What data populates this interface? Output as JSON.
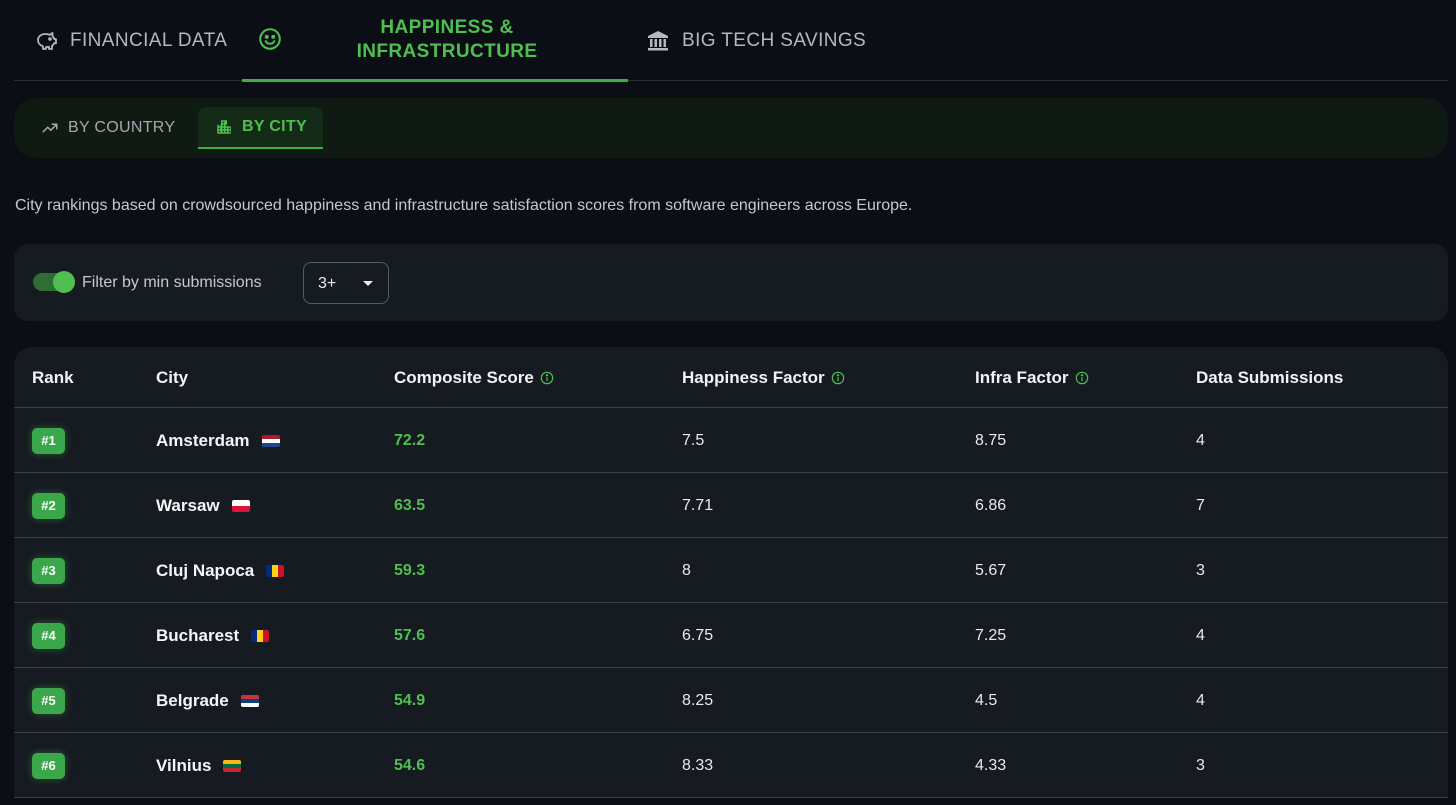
{
  "tabs": [
    {
      "label": "FINANCIAL DATA",
      "icon": "piggy-bank-icon"
    },
    {
      "label_line1": "HAPPINESS &",
      "label_line2": "INFRASTRUCTURE",
      "icon": "smiley-icon",
      "active": true
    },
    {
      "label": "BIG TECH SAVINGS",
      "icon": "bank-building-icon"
    }
  ],
  "subtabs": [
    {
      "label": "BY COUNTRY",
      "icon": "trending-up-icon"
    },
    {
      "label": "BY CITY",
      "icon": "city-icon",
      "active": true
    }
  ],
  "description": "City rankings based on crowdsourced happiness and infrastructure satisfaction scores from software engineers across Europe.",
  "filter": {
    "label": "Filter by min submissions",
    "enabled": true,
    "selected": "3+"
  },
  "table": {
    "headers": {
      "rank": "Rank",
      "city": "City",
      "composite": "Composite Score",
      "happiness": "Happiness Factor",
      "infra": "Infra Factor",
      "submissions": "Data Submissions"
    },
    "rows": [
      {
        "rank": "#1",
        "city": "Amsterdam",
        "flag": "netherlands-flag",
        "composite": "72.2",
        "happiness": "7.5",
        "infra": "8.75",
        "submissions": "4"
      },
      {
        "rank": "#2",
        "city": "Warsaw",
        "flag": "poland-flag",
        "composite": "63.5",
        "happiness": "7.71",
        "infra": "6.86",
        "submissions": "7"
      },
      {
        "rank": "#3",
        "city": "Cluj Napoca",
        "flag": "romania-flag",
        "composite": "59.3",
        "happiness": "8",
        "infra": "5.67",
        "submissions": "3"
      },
      {
        "rank": "#4",
        "city": "Bucharest",
        "flag": "romania-flag",
        "composite": "57.6",
        "happiness": "6.75",
        "infra": "7.25",
        "submissions": "4"
      },
      {
        "rank": "#5",
        "city": "Belgrade",
        "flag": "serbia-flag",
        "composite": "54.9",
        "happiness": "8.25",
        "infra": "4.5",
        "submissions": "4"
      },
      {
        "rank": "#6",
        "city": "Vilnius",
        "flag": "lithuania-flag",
        "composite": "54.6",
        "happiness": "8.33",
        "infra": "4.33",
        "submissions": "3"
      }
    ]
  },
  "colors": {
    "accent": "#4fbf4f",
    "background": "#0b0e14",
    "panel": "#161a21"
  }
}
